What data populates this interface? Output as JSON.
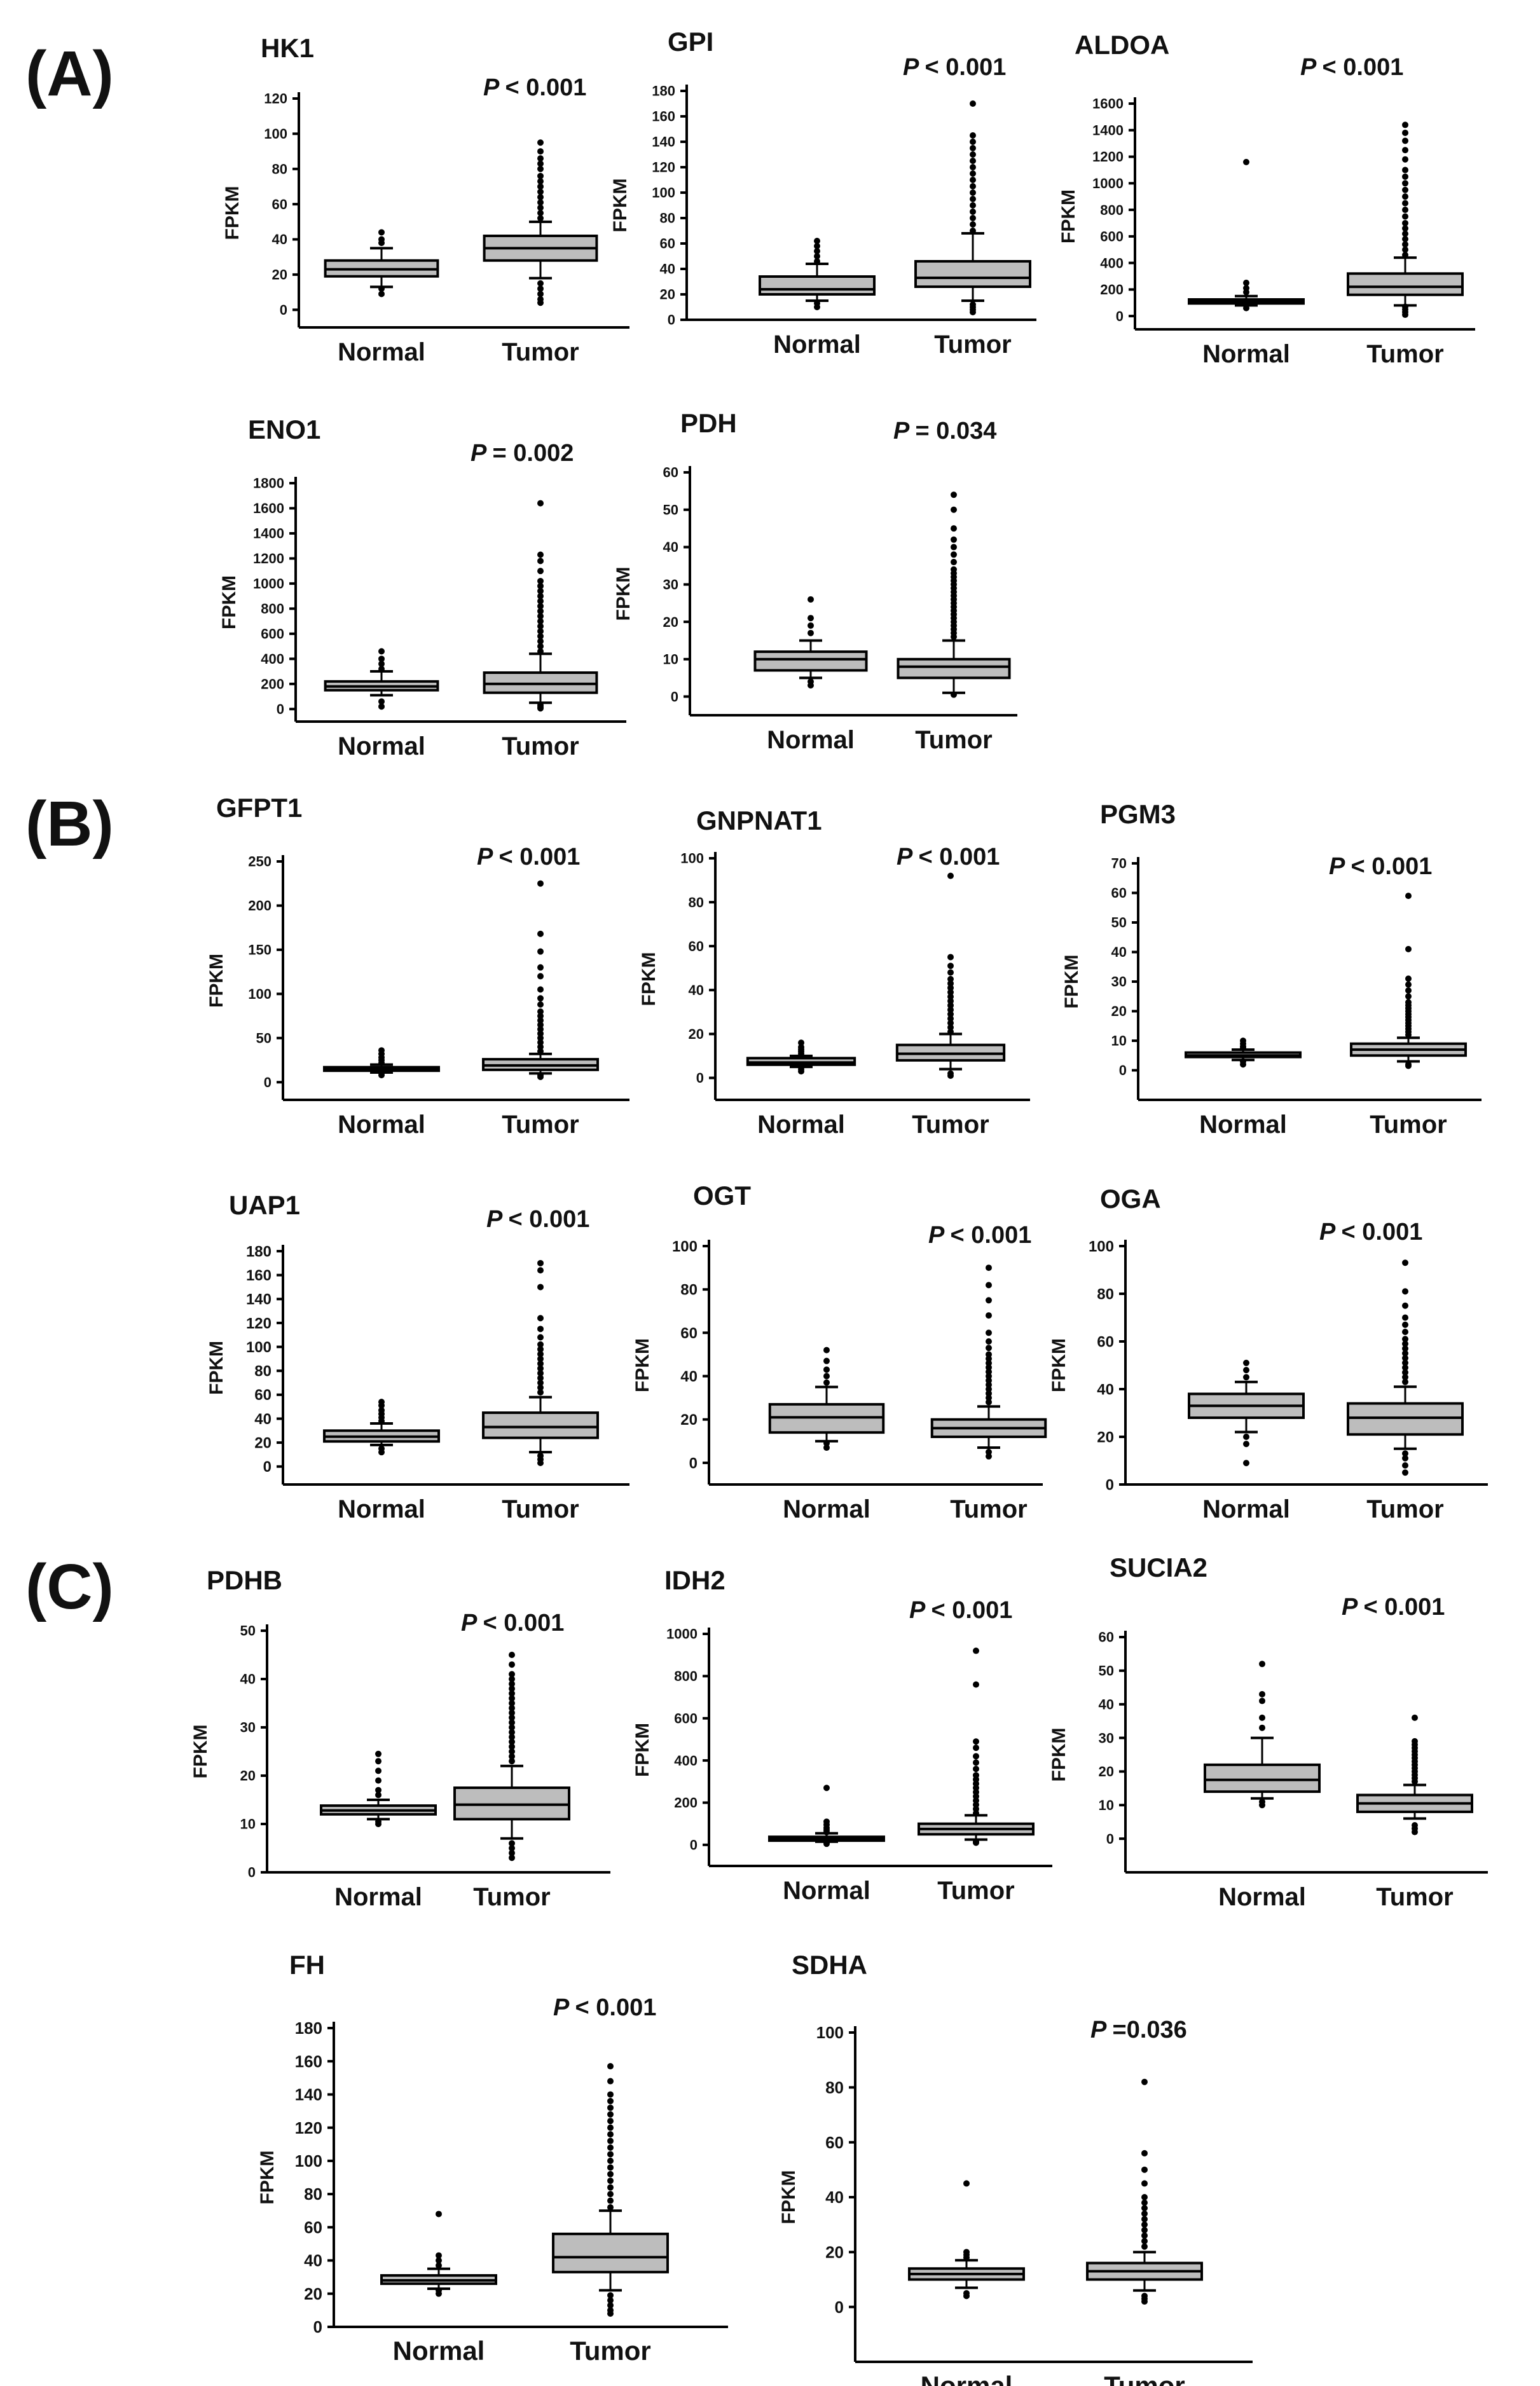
{
  "panels": [
    {
      "id": "panel-a",
      "label": "(A)"
    },
    {
      "id": "panel-b",
      "label": "(B)"
    },
    {
      "id": "panel-c",
      "label": "(C)"
    }
  ],
  "chart_data": [
    {
      "type": "box",
      "panel": "A",
      "title": "HK1",
      "pvalue": "< 0.001",
      "ylabel": "FPKM",
      "ylim": [
        -10,
        120
      ],
      "yticks": [
        0,
        20,
        40,
        60,
        80,
        100,
        120
      ],
      "categories": [
        "Normal",
        "Tumor"
      ],
      "boxes": [
        {
          "min": 13,
          "q1": 19,
          "median": 23,
          "q3": 28,
          "max": 35,
          "outliers": [
            9,
            12,
            38,
            40,
            44
          ]
        },
        {
          "min": 18,
          "q1": 28,
          "median": 35,
          "q3": 42,
          "max": 50,
          "outliers": [
            4,
            6,
            9,
            12,
            15,
            52,
            55,
            58,
            61,
            64,
            67,
            70,
            73,
            76,
            80,
            83,
            86,
            90,
            95
          ]
        }
      ]
    },
    {
      "type": "box",
      "panel": "A",
      "title": "GPI",
      "pvalue": "< 0.001",
      "ylabel": "FPKM",
      "ylim": [
        0,
        180
      ],
      "yticks": [
        0,
        20,
        40,
        60,
        80,
        100,
        120,
        140,
        160,
        180
      ],
      "categories": [
        "Normal",
        "Tumor"
      ],
      "boxes": [
        {
          "min": 15,
          "q1": 20,
          "median": 24,
          "q3": 34,
          "max": 44,
          "outliers": [
            10,
            13,
            46,
            50,
            54,
            58,
            62
          ]
        },
        {
          "min": 15,
          "q1": 26,
          "median": 33,
          "q3": 46,
          "max": 68,
          "outliers": [
            6,
            8,
            10,
            12,
            70,
            75,
            80,
            85,
            90,
            95,
            100,
            105,
            110,
            115,
            120,
            125,
            130,
            135,
            140,
            145,
            170
          ]
        }
      ]
    },
    {
      "type": "box",
      "panel": "A",
      "title": "ALDOA",
      "pvalue": "< 0.001",
      "ylabel": "FPKM",
      "ylim": [
        -100,
        1600
      ],
      "yticks": [
        0,
        200,
        400,
        600,
        800,
        1000,
        1200,
        1400,
        1600
      ],
      "categories": [
        "Normal",
        "Tumor"
      ],
      "boxes": [
        {
          "min": 80,
          "q1": 95,
          "median": 110,
          "q3": 125,
          "max": 150,
          "outliers": [
            60,
            180,
            210,
            250,
            1160
          ]
        },
        {
          "min": 80,
          "q1": 160,
          "median": 220,
          "q3": 320,
          "max": 440,
          "outliers": [
            10,
            30,
            50,
            70,
            460,
            500,
            540,
            580,
            620,
            660,
            700,
            750,
            800,
            850,
            900,
            950,
            1000,
            1050,
            1100,
            1180,
            1250,
            1320,
            1380,
            1440
          ]
        }
      ]
    },
    {
      "type": "box",
      "panel": "A",
      "title": "ENO1",
      "pvalue": "= 0.002",
      "ylabel": "FPKM",
      "ylim": [
        -100,
        1800
      ],
      "yticks": [
        0,
        200,
        400,
        600,
        800,
        1000,
        1200,
        1400,
        1600,
        1800
      ],
      "categories": [
        "Normal",
        "Tumor"
      ],
      "boxes": [
        {
          "min": 110,
          "q1": 150,
          "median": 180,
          "q3": 220,
          "max": 300,
          "outliers": [
            20,
            60,
            320,
            360,
            400,
            460
          ]
        },
        {
          "min": 50,
          "q1": 130,
          "median": 200,
          "q3": 290,
          "max": 440,
          "outliers": [
            5,
            15,
            30,
            460,
            500,
            540,
            580,
            620,
            660,
            700,
            740,
            780,
            820,
            860,
            900,
            940,
            980,
            1020,
            1100,
            1180,
            1230,
            1640
          ]
        }
      ]
    },
    {
      "type": "box",
      "panel": "A",
      "title": "PDH",
      "pvalue": "= 0.034",
      "ylabel": "FPKM",
      "ylim": [
        -5,
        60
      ],
      "yticks": [
        0,
        10,
        20,
        30,
        40,
        50,
        60
      ],
      "categories": [
        "Normal",
        "Tumor"
      ],
      "boxes": [
        {
          "min": 5,
          "q1": 7,
          "median": 10,
          "q3": 12,
          "max": 15,
          "outliers": [
            3,
            4,
            17,
            19,
            21,
            26
          ]
        },
        {
          "min": 1,
          "q1": 5,
          "median": 8,
          "q3": 10,
          "max": 15,
          "outliers": [
            0.5,
            16,
            17,
            18,
            19,
            20,
            21,
            22,
            23,
            24,
            25,
            26,
            27,
            28,
            29,
            30,
            31,
            32,
            33,
            34,
            36,
            38,
            40,
            42,
            45,
            50,
            54
          ]
        }
      ]
    },
    {
      "type": "box",
      "panel": "B",
      "title": "GFPT1",
      "pvalue": "< 0.001",
      "ylabel": "FPKM",
      "ylim": [
        -20,
        250
      ],
      "yticks": [
        0,
        50,
        100,
        150,
        200,
        250
      ],
      "categories": [
        "Normal",
        "Tumor"
      ],
      "boxes": [
        {
          "min": 11,
          "q1": 13,
          "median": 15,
          "q3": 17,
          "max": 20,
          "outliers": [
            8,
            10,
            22,
            25,
            28,
            32,
            36
          ]
        },
        {
          "min": 10,
          "q1": 14,
          "median": 19,
          "q3": 26,
          "max": 32,
          "outliers": [
            6,
            8,
            35,
            40,
            45,
            50,
            55,
            60,
            65,
            70,
            75,
            80,
            88,
            95,
            105,
            120,
            130,
            148,
            168,
            225
          ]
        }
      ]
    },
    {
      "type": "box",
      "panel": "B",
      "title": "GNPNAT1",
      "pvalue": "< 0.001",
      "ylabel": "FPKM",
      "ylim": [
        -10,
        100
      ],
      "yticks": [
        0,
        20,
        40,
        60,
        80,
        100
      ],
      "categories": [
        "Normal",
        "Tumor"
      ],
      "boxes": [
        {
          "min": 5,
          "q1": 6,
          "median": 7,
          "q3": 9,
          "max": 10,
          "outliers": [
            3,
            4,
            11,
            12,
            13,
            14,
            16
          ]
        },
        {
          "min": 4,
          "q1": 8,
          "median": 11,
          "q3": 15,
          "max": 20,
          "outliers": [
            1,
            2,
            21,
            23,
            25,
            27,
            29,
            31,
            33,
            35,
            37,
            39,
            41,
            43,
            45,
            48,
            51,
            55,
            92
          ]
        }
      ]
    },
    {
      "type": "box",
      "panel": "B",
      "title": "PGM3",
      "pvalue": "< 0.001",
      "ylabel": "FPKM",
      "ylim": [
        -10,
        70
      ],
      "yticks": [
        0,
        10,
        20,
        30,
        40,
        50,
        60,
        70
      ],
      "categories": [
        "Normal",
        "Tumor"
      ],
      "boxes": [
        {
          "min": 3.5,
          "q1": 4.5,
          "median": 5,
          "q3": 6,
          "max": 7,
          "outliers": [
            2,
            3,
            7.5,
            8,
            9,
            10
          ]
        },
        {
          "min": 3,
          "q1": 5,
          "median": 7,
          "q3": 9,
          "max": 11,
          "outliers": [
            1.5,
            2,
            12,
            13,
            14,
            15,
            16,
            17,
            18,
            19,
            20,
            21,
            22,
            23,
            25,
            27,
            29,
            31,
            41,
            59
          ]
        }
      ]
    },
    {
      "type": "box",
      "panel": "B",
      "title": "UAP1",
      "pvalue": "< 0.001",
      "ylabel": "FPKM",
      "ylim": [
        -15,
        180
      ],
      "yticks": [
        0,
        20,
        40,
        60,
        80,
        100,
        120,
        140,
        160,
        180
      ],
      "categories": [
        "Normal",
        "Tumor"
      ],
      "boxes": [
        {
          "min": 18,
          "q1": 21,
          "median": 25,
          "q3": 30,
          "max": 36,
          "outliers": [
            12,
            15,
            38,
            41,
            44,
            47,
            51,
            54
          ]
        },
        {
          "min": 12,
          "q1": 24,
          "median": 33,
          "q3": 45,
          "max": 58,
          "outliers": [
            3,
            6,
            9,
            62,
            66,
            70,
            74,
            78,
            82,
            86,
            90,
            94,
            98,
            102,
            108,
            115,
            124,
            150,
            164,
            170
          ]
        }
      ]
    },
    {
      "type": "box",
      "panel": "B",
      "title": "OGT",
      "pvalue": "< 0.001",
      "ylabel": "FPKM",
      "ylim": [
        -10,
        100
      ],
      "yticks": [
        0,
        20,
        40,
        60,
        80,
        100
      ],
      "categories": [
        "Normal",
        "Tumor"
      ],
      "boxes": [
        {
          "min": 10,
          "q1": 14,
          "median": 21,
          "q3": 27,
          "max": 35,
          "outliers": [
            7,
            9,
            37,
            40,
            43,
            47,
            52
          ]
        },
        {
          "min": 7,
          "q1": 12,
          "median": 16,
          "q3": 20,
          "max": 26,
          "outliers": [
            3,
            5,
            28,
            30,
            32,
            34,
            36,
            38,
            40,
            42,
            44,
            46,
            48,
            50,
            53,
            56,
            60,
            68,
            75,
            82,
            90
          ]
        }
      ]
    },
    {
      "type": "box",
      "panel": "B",
      "title": "OGA",
      "pvalue": "< 0.001",
      "ylabel": "FPKM",
      "ylim": [
        0,
        100
      ],
      "yticks": [
        0,
        20,
        40,
        60,
        80,
        100
      ],
      "categories": [
        "Normal",
        "Tumor"
      ],
      "boxes": [
        {
          "min": 22,
          "q1": 28,
          "median": 33,
          "q3": 38,
          "max": 43,
          "outliers": [
            9,
            17,
            20,
            45,
            48,
            51
          ]
        },
        {
          "min": 15,
          "q1": 21,
          "median": 28,
          "q3": 34,
          "max": 41,
          "outliers": [
            5,
            8,
            11,
            13,
            43,
            45,
            47,
            49,
            51,
            53,
            55,
            57,
            59,
            61,
            64,
            67,
            70,
            75,
            81,
            93
          ]
        }
      ]
    },
    {
      "type": "box",
      "panel": "C",
      "title": "PDHB",
      "pvalue": "< 0.001",
      "ylabel": "FPKM",
      "ylim": [
        0,
        50
      ],
      "yticks": [
        0,
        10,
        20,
        30,
        40,
        50
      ],
      "categories": [
        "Normal",
        "Tumor"
      ],
      "boxes": [
        {
          "min": 11,
          "q1": 12,
          "median": 12.8,
          "q3": 13.8,
          "max": 15,
          "outliers": [
            10,
            10.5,
            16,
            17,
            19,
            21,
            23,
            24.5
          ]
        },
        {
          "min": 7,
          "q1": 11,
          "median": 14,
          "q3": 17.5,
          "max": 22,
          "outliers": [
            3,
            4,
            5,
            6,
            23,
            24,
            25,
            26,
            27,
            28,
            29,
            30,
            31,
            32,
            33,
            34,
            35,
            36,
            37,
            38,
            39,
            40,
            41,
            43,
            45
          ]
        }
      ]
    },
    {
      "type": "box",
      "panel": "C",
      "title": "IDH2",
      "pvalue": "< 0.001",
      "ylabel": "FPKM",
      "ylim": [
        -100,
        1000
      ],
      "yticks": [
        0,
        200,
        400,
        600,
        800,
        1000
      ],
      "categories": [
        "Normal",
        "Tumor"
      ],
      "boxes": [
        {
          "min": 15,
          "q1": 20,
          "median": 28,
          "q3": 38,
          "max": 55,
          "outliers": [
            5,
            10,
            60,
            70,
            80,
            95,
            110,
            270
          ]
        },
        {
          "min": 25,
          "q1": 50,
          "median": 75,
          "q3": 100,
          "max": 140,
          "outliers": [
            10,
            15,
            150,
            170,
            190,
            210,
            230,
            250,
            270,
            290,
            310,
            330,
            360,
            390,
            420,
            460,
            490,
            760,
            920
          ]
        }
      ]
    },
    {
      "type": "box",
      "panel": "C",
      "title": "SUCIA2",
      "pvalue": "< 0.001",
      "ylabel": "FPKM",
      "ylim": [
        -10,
        60
      ],
      "yticks": [
        0,
        10,
        20,
        30,
        40,
        50,
        60
      ],
      "categories": [
        "Normal",
        "Tumor"
      ],
      "boxes": [
        {
          "min": 12,
          "q1": 14,
          "median": 17.5,
          "q3": 22,
          "max": 30,
          "outliers": [
            10,
            11,
            33,
            36,
            41,
            43,
            52
          ]
        },
        {
          "min": 6,
          "q1": 8,
          "median": 10.5,
          "q3": 13,
          "max": 16,
          "outliers": [
            2,
            3,
            4,
            17,
            18,
            19,
            20,
            21,
            22,
            23,
            24,
            25,
            26,
            27,
            28,
            29,
            36
          ]
        }
      ]
    },
    {
      "type": "box",
      "panel": "C",
      "title": "FH",
      "pvalue": "< 0.001",
      "ylabel": "FPKM",
      "ylim": [
        0,
        180
      ],
      "yticks": [
        0,
        20,
        40,
        60,
        80,
        100,
        120,
        140,
        160,
        180
      ],
      "categories": [
        "Normal",
        "Tumor"
      ],
      "boxes": [
        {
          "min": 23,
          "q1": 26,
          "median": 28,
          "q3": 31,
          "max": 35,
          "outliers": [
            20,
            22,
            37,
            40,
            43,
            68
          ]
        },
        {
          "min": 22,
          "q1": 33,
          "median": 42,
          "q3": 56,
          "max": 70,
          "outliers": [
            8,
            10,
            13,
            16,
            19,
            72,
            76,
            80,
            84,
            88,
            92,
            96,
            100,
            104,
            108,
            112,
            116,
            120,
            124,
            128,
            132,
            136,
            140,
            148,
            157
          ]
        }
      ]
    },
    {
      "type": "box",
      "panel": "C",
      "title": "SDHA",
      "pvalue": "=0.036",
      "ylabel": "FPKM",
      "ylim": [
        -20,
        100
      ],
      "yticks": [
        0,
        20,
        40,
        60,
        80,
        100
      ],
      "categories": [
        "Normal",
        "Tumor"
      ],
      "boxes": [
        {
          "min": 7,
          "q1": 10,
          "median": 12,
          "q3": 14,
          "max": 17,
          "outliers": [
            4,
            5,
            18,
            19,
            20,
            45
          ]
        },
        {
          "min": 6,
          "q1": 10,
          "median": 13,
          "q3": 16,
          "max": 20,
          "outliers": [
            2,
            3,
            4,
            22,
            24,
            26,
            28,
            30,
            32,
            34,
            36,
            38,
            40,
            45,
            50,
            56,
            82
          ]
        }
      ]
    }
  ]
}
